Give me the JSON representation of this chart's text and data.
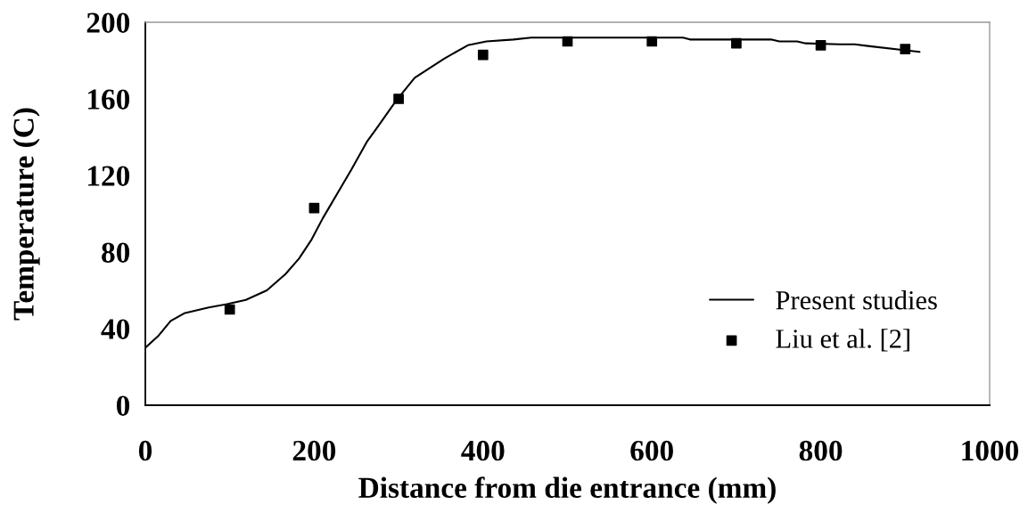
{
  "chart_data": {
    "type": "line",
    "xlabel": "Distance from die entrance (mm)",
    "ylabel": "Temperature (C)",
    "xlim": [
      0,
      1000
    ],
    "ylim": [
      0,
      200
    ],
    "xticks": [
      0,
      200,
      400,
      600,
      800,
      1000
    ],
    "yticks": [
      0,
      40,
      80,
      120,
      160,
      200
    ],
    "grid": false,
    "legend": "bottom right",
    "series": [
      {
        "name": "Present studies",
        "color": "#000000",
        "marker": "none",
        "line_style": "solid",
        "x": [
          0,
          15,
          30,
          46,
          75,
          99,
          119,
          144,
          166,
          182,
          197,
          210,
          244,
          263,
          273,
          297,
          319,
          354,
          382,
          404,
          436,
          457,
          637,
          645,
          741,
          751,
          772,
          782,
          822,
          840,
          858,
          917
        ],
        "values": [
          30,
          36,
          44,
          48,
          51,
          53,
          55,
          60,
          68.5,
          76.6,
          86.6,
          97.5,
          123,
          138,
          144,
          159,
          171,
          181,
          188,
          190,
          191,
          192,
          192,
          191,
          191,
          190,
          190,
          189,
          188.5,
          188.5,
          187.5,
          184.5
        ]
      },
      {
        "name": "Liu et al. [2]",
        "type": "scatter",
        "color": "#000000",
        "marker": "square",
        "x": [
          100,
          200,
          300,
          400,
          500,
          600,
          700,
          800,
          900
        ],
        "values": [
          50,
          103,
          160,
          183,
          190,
          190,
          189,
          188,
          186
        ]
      }
    ]
  }
}
